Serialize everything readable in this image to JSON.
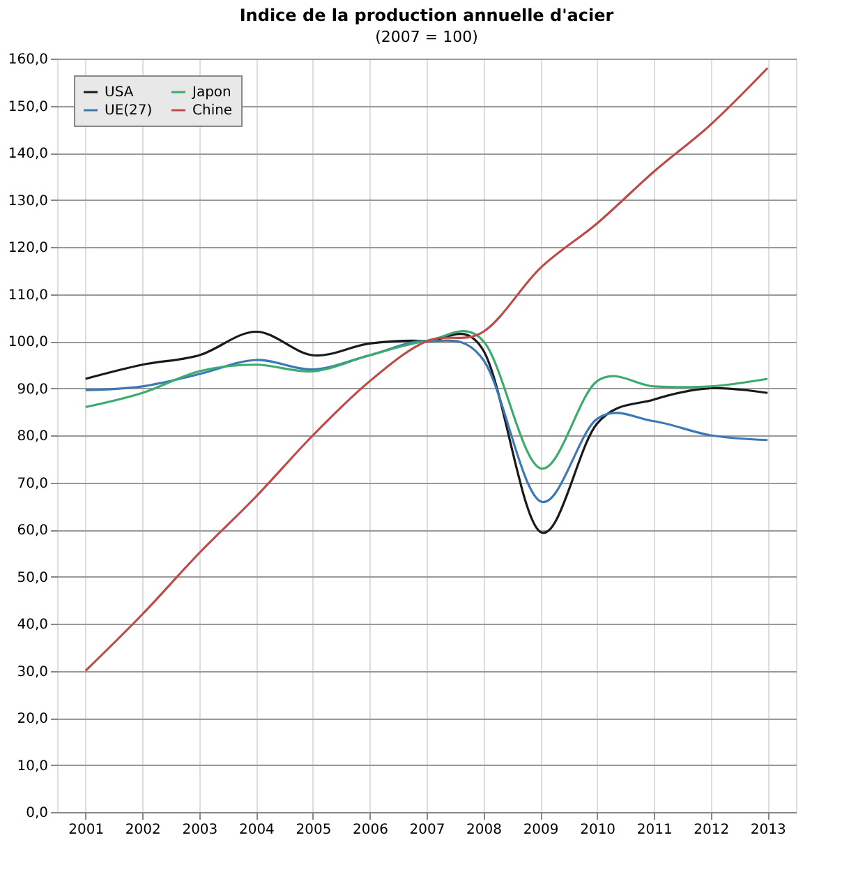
{
  "chart_data": {
    "type": "line",
    "title": "Indice de la production annuelle d'acier",
    "subtitle": "(2007 = 100)",
    "categories": [
      "2001",
      "2002",
      "2003",
      "2004",
      "2005",
      "2006",
      "2007",
      "2008",
      "2009",
      "2010",
      "2011",
      "2012",
      "2013"
    ],
    "series": [
      {
        "name": "USA",
        "color": "#1a1a1a",
        "values": [
          92,
          95,
          97,
          102,
          97,
          99.5,
          100,
          98,
          59.5,
          82.5,
          87.6,
          90,
          89
        ]
      },
      {
        "name": "UE(27)",
        "color": "#3c78b4",
        "values": [
          89.6,
          90.4,
          93,
          96,
          94,
          97,
          100,
          96,
          66,
          83.5,
          83,
          80,
          79
        ]
      },
      {
        "name": "Japon",
        "color": "#3daa6e",
        "values": [
          86,
          89,
          93.6,
          95,
          93.6,
          97,
          100,
          100,
          73,
          91.5,
          90.4,
          90.4,
          92
        ]
      },
      {
        "name": "Chine",
        "color": "#be4b48",
        "values": [
          30,
          42,
          55,
          67,
          80,
          91.5,
          100,
          102,
          115.5,
          125,
          136,
          146,
          158
        ]
      }
    ],
    "ylim": [
      0,
      160
    ],
    "yticks": [
      {
        "value": 0,
        "label": "0,0"
      },
      {
        "value": 10,
        "label": "10,0"
      },
      {
        "value": 20,
        "label": "20,0"
      },
      {
        "value": 30,
        "label": "30,0"
      },
      {
        "value": 40,
        "label": "40,0"
      },
      {
        "value": 50,
        "label": "50,0"
      },
      {
        "value": 60,
        "label": "60,0"
      },
      {
        "value": 70,
        "label": "70,0"
      },
      {
        "value": 80,
        "label": "80,0"
      },
      {
        "value": 90,
        "label": "90,0"
      },
      {
        "value": 100,
        "label": "100,0"
      },
      {
        "value": 110,
        "label": "110,0"
      },
      {
        "value": 120,
        "label": "120,0"
      },
      {
        "value": 130,
        "label": "130,0"
      },
      {
        "value": 140,
        "label": "140,0"
      },
      {
        "value": 150,
        "label": "150,0"
      },
      {
        "value": 160,
        "label": "160,0"
      }
    ],
    "grid": true,
    "legend": "top left",
    "line_style": "solid",
    "marker": "none"
  }
}
